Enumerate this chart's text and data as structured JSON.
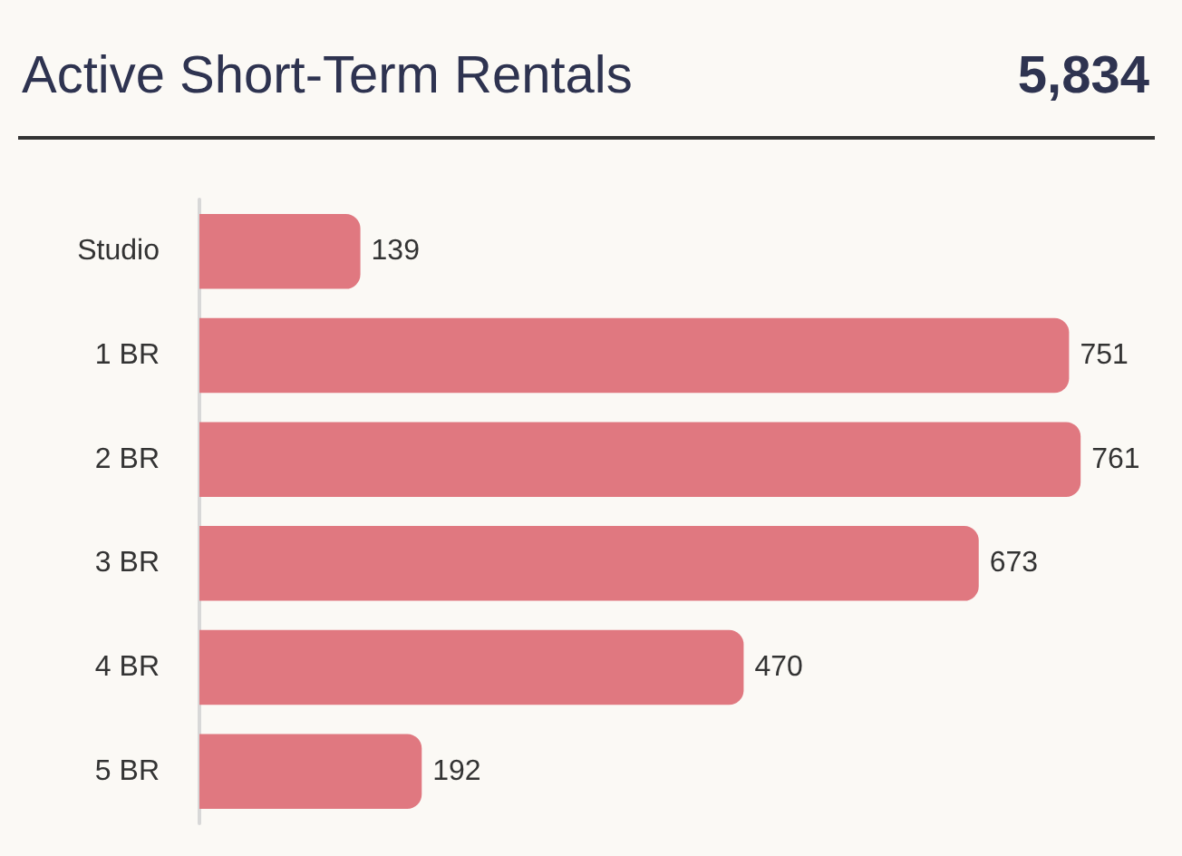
{
  "chart_data": {
    "type": "bar",
    "orientation": "horizontal",
    "title": "Active Short-Term Rentals",
    "subtitle": "5,834",
    "categories": [
      "Studio",
      "1 BR",
      "2 BR",
      "3 BR",
      "4 BR",
      "5 BR"
    ],
    "values": [
      139,
      751,
      761,
      673,
      470,
      192
    ],
    "color": "#e07880",
    "data_labels": true
  }
}
